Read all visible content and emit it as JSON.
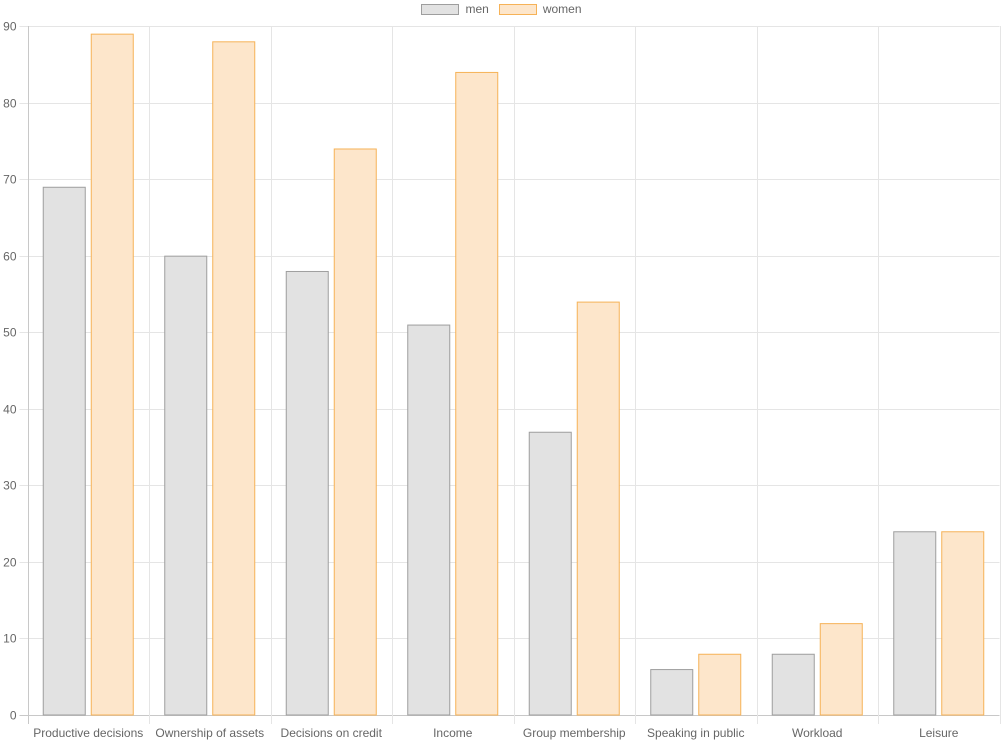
{
  "chart_data": {
    "type": "bar",
    "title": "",
    "xlabel": "",
    "ylabel": "",
    "ylim": [
      0,
      90
    ],
    "yticks": [
      0,
      10,
      20,
      30,
      40,
      50,
      60,
      70,
      80,
      90
    ],
    "grid": true,
    "legend_position": "top",
    "categories": [
      "Productive decisions",
      "Ownership of assets",
      "Decisions on credit",
      "Income",
      "Group membership",
      "Speaking in public",
      "Workload",
      "Leisure"
    ],
    "series": [
      {
        "name": "men",
        "values": [
          69,
          60,
          58,
          51,
          37,
          6,
          8,
          24
        ],
        "fill": "#e2e2e2",
        "stroke": "#9e9e9e"
      },
      {
        "name": "women",
        "values": [
          89,
          88,
          74,
          84,
          54,
          8,
          12,
          24
        ],
        "fill": "#fde6cb",
        "stroke": "#f6b257"
      }
    ]
  },
  "legend": {
    "men": "men",
    "women": "women"
  }
}
